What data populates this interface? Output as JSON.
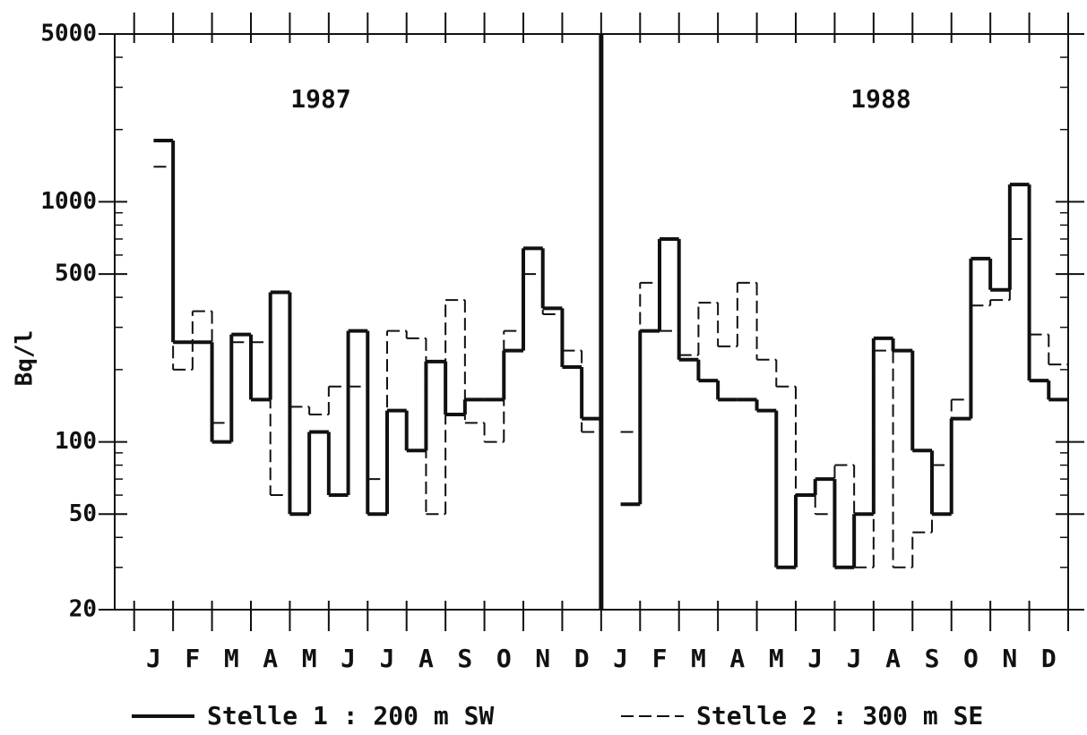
{
  "chart_data": {
    "type": "step",
    "y_label": "Bq/l",
    "annotations": [
      "1987",
      "1988"
    ],
    "log_y": true,
    "ylim": [
      20,
      5000
    ],
    "yticks": [
      20,
      50,
      100,
      500,
      1000,
      5000
    ],
    "yminorticks": [
      30,
      40,
      60,
      70,
      80,
      90,
      200,
      300,
      400,
      600,
      700,
      800,
      900,
      2000,
      3000,
      4000
    ],
    "xlim": [
      -0.5,
      24
    ],
    "xticks": [
      {
        "value": 0.5,
        "label": "J"
      },
      {
        "value": 1.5,
        "label": "F"
      },
      {
        "value": 2.5,
        "label": "M"
      },
      {
        "value": 3.5,
        "label": "A"
      },
      {
        "value": 4.5,
        "label": "M"
      },
      {
        "value": 5.5,
        "label": "J"
      },
      {
        "value": 6.5,
        "label": "J"
      },
      {
        "value": 7.5,
        "label": "A"
      },
      {
        "value": 8.5,
        "label": "S"
      },
      {
        "value": 9.5,
        "label": "O"
      },
      {
        "value": 10.5,
        "label": "N"
      },
      {
        "value": 11.5,
        "label": "D"
      },
      {
        "value": 12.5,
        "label": "J"
      },
      {
        "value": 13.5,
        "label": "F"
      },
      {
        "value": 14.5,
        "label": "M"
      },
      {
        "value": 15.5,
        "label": "A"
      },
      {
        "value": 16.5,
        "label": "M"
      },
      {
        "value": 17.5,
        "label": "J"
      },
      {
        "value": 18.5,
        "label": "J"
      },
      {
        "value": 19.5,
        "label": "A"
      },
      {
        "value": 20.5,
        "label": "S"
      },
      {
        "value": 21.5,
        "label": "O"
      },
      {
        "value": 22.5,
        "label": "N"
      },
      {
        "value": 23.5,
        "label": "D"
      }
    ],
    "xminorticks": [
      0,
      1,
      2,
      3,
      4,
      5,
      6,
      7,
      8,
      9,
      10,
      11,
      12,
      13,
      14,
      15,
      16,
      17,
      18,
      19,
      20,
      21,
      22,
      23,
      24
    ],
    "x": [
      0,
      0.5,
      1,
      1.5,
      2,
      2.5,
      3,
      3.5,
      4,
      4.5,
      5,
      5.5,
      6,
      6.5,
      7,
      7.5,
      8,
      8.5,
      9,
      9.5,
      10,
      10.5,
      11,
      11.5,
      12,
      12.5,
      13,
      13.5,
      14,
      14.5,
      15,
      15.5,
      16,
      16.5,
      17,
      17.5,
      18,
      18.5,
      19,
      19.5,
      20,
      20.5,
      21,
      21.5,
      22,
      22.5,
      23,
      23.5
    ],
    "series": [
      {
        "name": "Stelle 1 : 200 m SW",
        "color": "#111111",
        "style": "solid",
        "values": [
          null,
          1800,
          260,
          260,
          100,
          280,
          150,
          420,
          50,
          110,
          60,
          290,
          50,
          135,
          92,
          216,
          130,
          150,
          150,
          240,
          640,
          360,
          205,
          125,
          null,
          55,
          290,
          700,
          220,
          180,
          150,
          150,
          135,
          30,
          60,
          70,
          30,
          50,
          270,
          240,
          92,
          50,
          125,
          580,
          430,
          1180,
          180,
          150
        ]
      },
      {
        "name": "Stelle 2 : 300 m SE",
        "color": "#111111",
        "style": "dashed",
        "values": [
          null,
          1400,
          200,
          350,
          120,
          260,
          260,
          60,
          140,
          130,
          170,
          170,
          70,
          290,
          270,
          50,
          390,
          120,
          100,
          290,
          500,
          340,
          240,
          110,
          null,
          110,
          460,
          290,
          230,
          380,
          250,
          460,
          220,
          170,
          60,
          50,
          80,
          30,
          240,
          30,
          42,
          80,
          150,
          370,
          390,
          700,
          280,
          210
        ]
      }
    ]
  }
}
